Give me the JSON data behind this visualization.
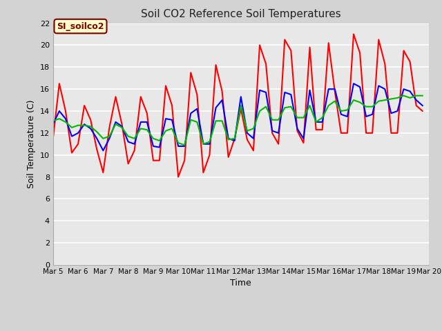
{
  "title": "Soil CO2 Reference Soil Temperatures",
  "xlabel": "Time",
  "ylabel": "Soil Temperature (C)",
  "ylim": [
    0,
    22
  ],
  "background_color": "#d3d3d3",
  "plot_bg_color": "#e8e8e8",
  "grid_color": "#ffffff",
  "label_box_text": "SI_soilco2",
  "label_box_facecolor": "#ffffcc",
  "label_box_edgecolor": "#800000",
  "label_box_textcolor": "#800000",
  "series": {
    "red": {
      "color": "#ff0000",
      "x_days": [
        5.0,
        5.25,
        5.5,
        5.75,
        6.0,
        6.25,
        6.5,
        6.75,
        7.0,
        7.25,
        7.5,
        7.75,
        8.0,
        8.25,
        8.5,
        8.75,
        9.0,
        9.25,
        9.5,
        9.75,
        10.0,
        10.25,
        10.5,
        10.75,
        11.0,
        11.25,
        11.5,
        11.75,
        12.0,
        12.25,
        12.5,
        12.75,
        13.0,
        13.25,
        13.5,
        13.75,
        14.0,
        14.25,
        14.5,
        14.75,
        15.0,
        15.25,
        15.5,
        15.75,
        16.0,
        16.25,
        16.5,
        16.75,
        17.0,
        17.25,
        17.5,
        17.75,
        18.0,
        18.25,
        18.5,
        18.75,
        19.0,
        19.25,
        19.5,
        19.75
      ],
      "y": [
        11.5,
        16.5,
        14.0,
        10.2,
        11.0,
        14.5,
        13.2,
        10.5,
        8.4,
        12.5,
        15.3,
        12.8,
        9.2,
        10.4,
        15.3,
        13.8,
        9.5,
        9.5,
        16.3,
        14.5,
        8.0,
        9.5,
        17.5,
        15.5,
        8.4,
        10.0,
        18.2,
        15.8,
        9.8,
        11.5,
        14.2,
        11.4,
        10.4,
        20.0,
        18.3,
        12.0,
        11.0,
        20.5,
        19.5,
        12.2,
        11.1,
        19.8,
        12.3,
        12.3,
        20.2,
        15.8,
        12.0,
        12.0,
        21.0,
        19.3,
        12.0,
        12.0,
        20.5,
        18.3,
        12.0,
        12.0,
        19.5,
        18.5,
        14.5,
        14.0
      ]
    },
    "blue": {
      "color": "#0000ff",
      "x_days": [
        5.0,
        5.25,
        5.5,
        5.75,
        6.0,
        6.25,
        6.5,
        6.75,
        7.0,
        7.25,
        7.5,
        7.75,
        8.0,
        8.25,
        8.5,
        8.75,
        9.0,
        9.25,
        9.5,
        9.75,
        10.0,
        10.25,
        10.5,
        10.75,
        11.0,
        11.25,
        11.5,
        11.75,
        12.0,
        12.25,
        12.5,
        12.75,
        13.0,
        13.25,
        13.5,
        13.75,
        14.0,
        14.25,
        14.5,
        14.75,
        15.0,
        15.25,
        15.5,
        15.75,
        16.0,
        16.25,
        16.5,
        16.75,
        17.0,
        17.25,
        17.5,
        17.75,
        18.0,
        18.25,
        18.5,
        18.75,
        19.0,
        19.25,
        19.5,
        19.75
      ],
      "y": [
        12.8,
        14.0,
        13.3,
        11.7,
        12.0,
        12.8,
        12.4,
        11.5,
        10.4,
        11.5,
        13.0,
        12.6,
        11.2,
        11.0,
        13.0,
        13.0,
        10.8,
        10.7,
        13.3,
        13.2,
        10.8,
        10.8,
        13.8,
        14.2,
        11.0,
        11.0,
        14.3,
        15.0,
        11.5,
        11.3,
        15.3,
        12.0,
        11.5,
        15.9,
        15.7,
        12.2,
        12.0,
        15.7,
        15.5,
        12.4,
        11.5,
        15.9,
        13.0,
        13.0,
        16.0,
        16.0,
        13.7,
        13.5,
        16.5,
        16.2,
        13.5,
        13.7,
        16.3,
        16.0,
        13.8,
        14.0,
        16.0,
        15.8,
        15.0,
        14.5
      ]
    },
    "green": {
      "color": "#00bb00",
      "x_days": [
        5.0,
        5.25,
        5.5,
        5.75,
        6.0,
        6.25,
        6.5,
        6.75,
        7.0,
        7.25,
        7.5,
        7.75,
        8.0,
        8.25,
        8.5,
        8.75,
        9.0,
        9.25,
        9.5,
        9.75,
        10.0,
        10.25,
        10.5,
        10.75,
        11.0,
        11.25,
        11.5,
        11.75,
        12.0,
        12.25,
        12.5,
        12.75,
        13.0,
        13.25,
        13.5,
        13.75,
        14.0,
        14.25,
        14.5,
        14.75,
        15.0,
        15.25,
        15.5,
        15.75,
        16.0,
        16.25,
        16.5,
        16.75,
        17.0,
        17.25,
        17.5,
        17.75,
        18.0,
        18.25,
        18.5,
        18.75,
        19.0,
        19.25,
        19.5,
        19.75
      ],
      "y": [
        13.1,
        13.3,
        13.0,
        12.5,
        12.7,
        12.7,
        12.6,
        12.1,
        11.5,
        11.7,
        12.8,
        12.5,
        11.7,
        11.5,
        12.4,
        12.3,
        11.5,
        11.3,
        12.2,
        12.4,
        11.1,
        10.9,
        13.2,
        13.0,
        11.0,
        11.2,
        13.1,
        13.1,
        11.4,
        11.5,
        14.5,
        12.2,
        12.4,
        14.0,
        14.4,
        13.2,
        13.2,
        14.3,
        14.4,
        13.4,
        13.4,
        14.5,
        13.0,
        13.4,
        14.5,
        14.9,
        14.0,
        14.1,
        15.0,
        14.8,
        14.4,
        14.4,
        14.9,
        15.0,
        15.1,
        15.2,
        15.4,
        15.2,
        15.4,
        15.4
      ]
    }
  },
  "xtick_labels": [
    "Mar 5",
    "Mar 6",
    "Mar 7",
    "Mar 8",
    "Mar 9",
    "Mar 10",
    "Mar 11",
    "Mar 12",
    "Mar 13",
    "Mar 14",
    "Mar 15",
    "Mar 16",
    "Mar 17",
    "Mar 18",
    "Mar 19",
    "Mar 20"
  ],
  "xtick_positions": [
    5,
    6,
    7,
    8,
    9,
    10,
    11,
    12,
    13,
    14,
    15,
    16,
    17,
    18,
    19,
    20
  ],
  "ytick_positions": [
    0,
    2,
    4,
    6,
    8,
    10,
    12,
    14,
    16,
    18,
    20,
    22
  ],
  "linewidth": 1.5
}
